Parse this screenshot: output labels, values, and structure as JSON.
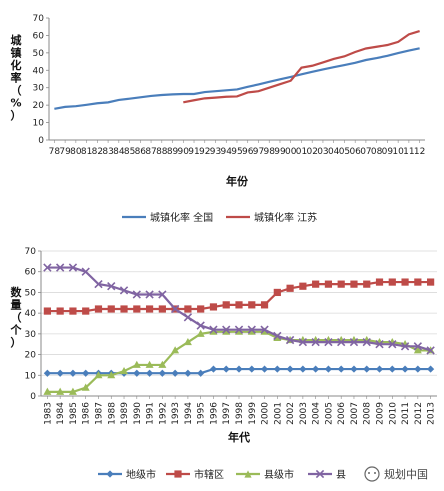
{
  "chart_data": [
    {
      "type": "line",
      "ylabel": "城镇化率（%）",
      "xlabel": "年份",
      "ylim": [
        0,
        70
      ],
      "yticks": [
        0,
        10,
        20,
        30,
        40,
        50,
        60,
        70
      ],
      "categories": [
        "78",
        "79",
        "80",
        "81",
        "82",
        "83",
        "84",
        "85",
        "86",
        "87",
        "88",
        "89",
        "90",
        "91",
        "92",
        "93",
        "94",
        "95",
        "96",
        "97",
        "98",
        "99",
        "00",
        "01",
        "02",
        "03",
        "04",
        "05",
        "06",
        "07",
        "08",
        "09",
        "10",
        "11",
        "12"
      ],
      "series": [
        {
          "name": "城镇化率 全国",
          "color": "#4a7ebb",
          "values": [
            17.9,
            19.0,
            19.4,
            20.2,
            21.1,
            21.6,
            23.0,
            23.7,
            24.5,
            25.3,
            25.8,
            26.2,
            26.4,
            26.4,
            27.5,
            28.0,
            28.5,
            29.0,
            30.5,
            31.9,
            33.4,
            34.8,
            36.2,
            37.7,
            39.1,
            40.5,
            41.8,
            43.0,
            44.3,
            45.9,
            47.0,
            48.3,
            49.9,
            51.3,
            52.6
          ]
        },
        {
          "name": "城镇化率 江苏",
          "color": "#be4b48",
          "values": [
            null,
            null,
            null,
            null,
            null,
            null,
            null,
            null,
            null,
            null,
            null,
            null,
            21.6,
            22.8,
            23.9,
            24.3,
            24.8,
            25.0,
            27.3,
            28.0,
            30.0,
            32.0,
            34.0,
            41.5,
            42.6,
            44.5,
            46.5,
            48.0,
            50.5,
            52.5,
            53.5,
            54.5,
            56.3,
            60.6,
            62.5
          ]
        }
      ]
    },
    {
      "type": "line",
      "ylabel": "数量（个）",
      "xlabel": "年代",
      "ylim": [
        0,
        70
      ],
      "yticks": [
        0,
        10,
        20,
        30,
        40,
        50,
        60,
        70
      ],
      "categories": [
        "1983",
        "1984",
        "1985",
        "1986",
        "1987",
        "1988",
        "1989",
        "1990",
        "1991",
        "1992",
        "1993",
        "1994",
        "1995",
        "1996",
        "1997",
        "1998",
        "1999",
        "2000",
        "2001",
        "2002",
        "2003",
        "2004",
        "2005",
        "2006",
        "2007",
        "2008",
        "2009",
        "2010",
        "2011",
        "2012",
        "2013"
      ],
      "series": [
        {
          "name": "地级市",
          "color": "#4a7ebb",
          "marker": "diamond",
          "values": [
            11,
            11,
            11,
            11,
            11,
            11,
            11,
            11,
            11,
            11,
            11,
            11,
            11,
            13,
            13,
            13,
            13,
            13,
            13,
            13,
            13,
            13,
            13,
            13,
            13,
            13,
            13,
            13,
            13,
            13,
            13
          ]
        },
        {
          "name": "市辖区",
          "color": "#be4b48",
          "marker": "square",
          "values": [
            41,
            41,
            41,
            41,
            42,
            42,
            42,
            42,
            42,
            42,
            42,
            42,
            42,
            43,
            44,
            44,
            44,
            44,
            50,
            52,
            53,
            54,
            54,
            54,
            54,
            54,
            55,
            55,
            55,
            55,
            55
          ]
        },
        {
          "name": "县级市",
          "color": "#9bbb59",
          "marker": "triangle",
          "values": [
            2,
            2,
            2,
            4,
            10,
            10,
            12,
            15,
            15,
            15,
            22,
            26,
            30,
            31,
            31,
            31,
            31,
            31,
            28,
            27,
            27,
            27,
            27,
            27,
            27,
            27,
            26,
            26,
            25,
            22,
            22
          ]
        },
        {
          "name": "县",
          "color": "#8064a2",
          "marker": "x",
          "values": [
            62,
            62,
            62,
            60,
            54,
            53,
            51,
            49,
            49,
            49,
            42,
            38,
            34,
            32,
            32,
            32,
            32,
            32,
            29,
            27,
            26,
            26,
            26,
            26,
            26,
            26,
            25,
            25,
            24,
            24,
            22
          ]
        }
      ]
    }
  ],
  "watermark": "规划中国"
}
